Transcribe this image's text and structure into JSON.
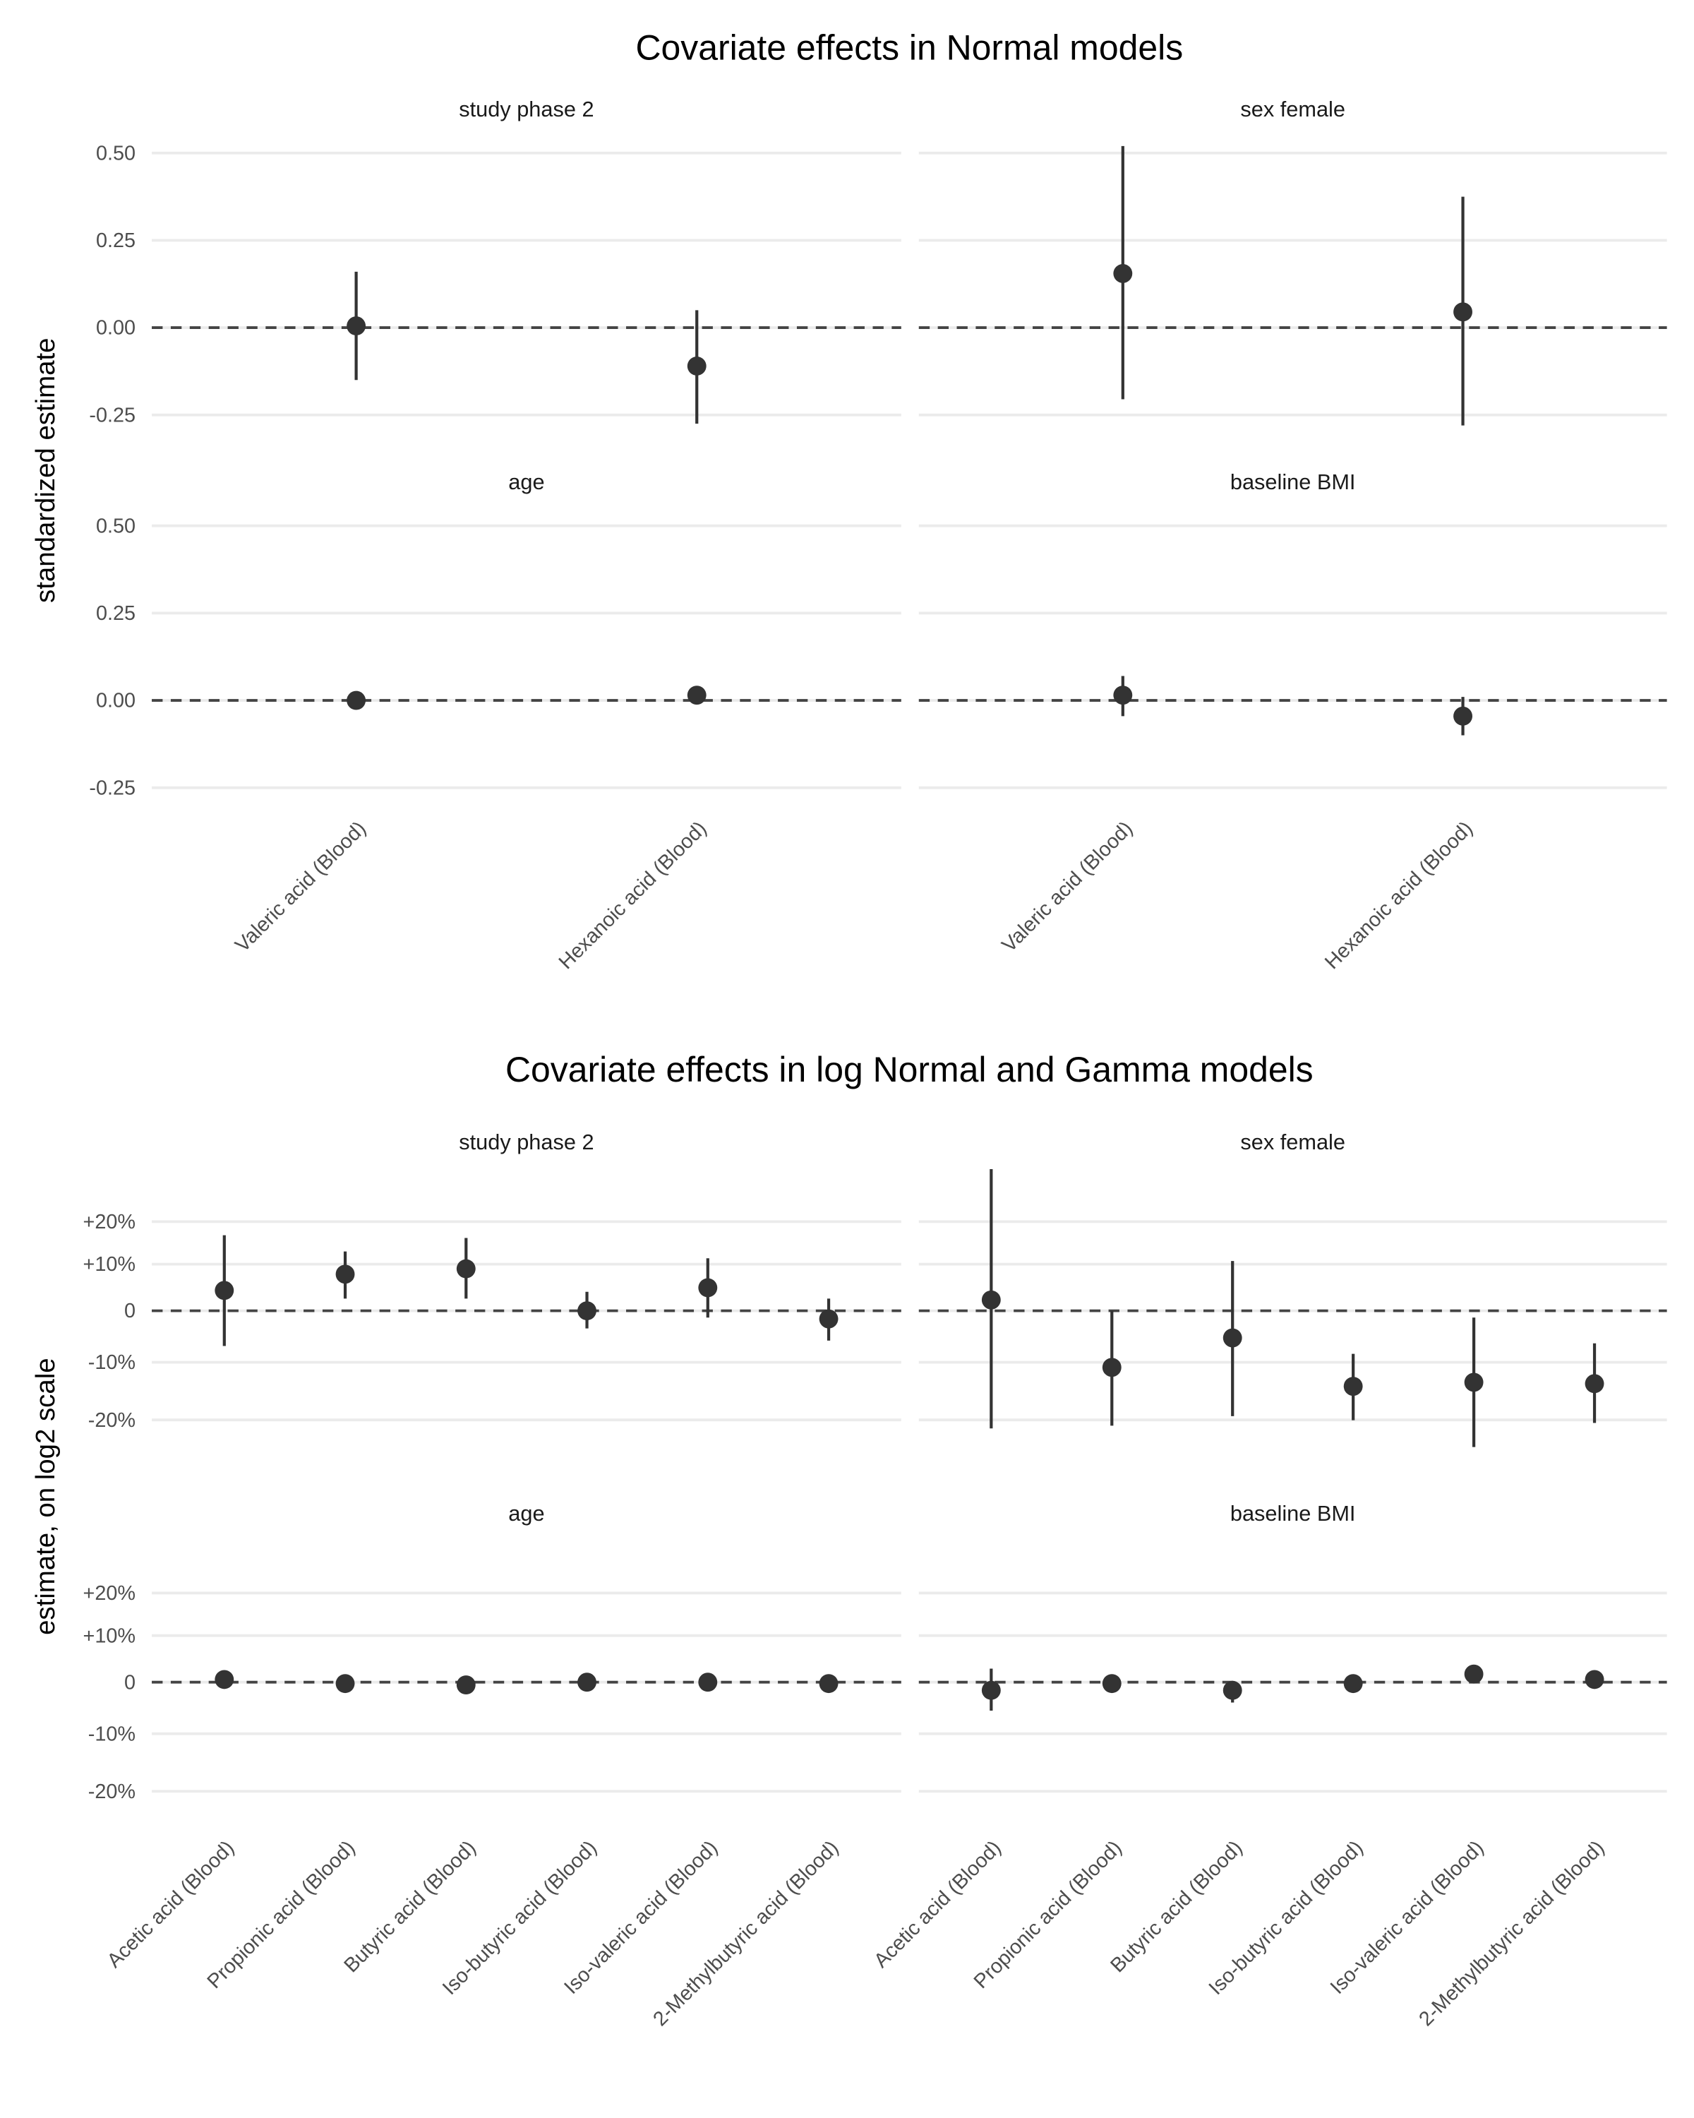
{
  "chart_data": [
    {
      "type": "pointrange",
      "title": "Covariate effects in Normal models",
      "y_label": "standardized estimate",
      "categories": [
        "Valeric acid (Blood)",
        "Hexanoic acid (Blood)"
      ],
      "ylim": [
        -0.3,
        0.55
      ],
      "yticks": [
        {
          "value": 0.5,
          "label": "0.50"
        },
        {
          "value": 0.25,
          "label": "0.25"
        },
        {
          "value": 0,
          "label": "0.00"
        },
        {
          "value": -0.25,
          "label": "-0.25"
        }
      ],
      "reference_line": 0,
      "grid": true,
      "color": "#333333",
      "facets": [
        {
          "title": "study phase 2",
          "values": [
            0.005,
            -0.11
          ],
          "lower": [
            -0.15,
            -0.275
          ],
          "upper": [
            0.16,
            0.05
          ]
        },
        {
          "title": "sex female",
          "values": [
            0.155,
            0.045
          ],
          "lower": [
            -0.205,
            -0.28
          ],
          "upper": [
            0.52,
            0.375
          ]
        },
        {
          "title": "age",
          "values": [
            0.0,
            0.015
          ],
          "lower": [
            -0.005,
            0.01
          ],
          "upper": [
            0.005,
            0.02
          ]
        },
        {
          "title": "baseline BMI",
          "values": [
            0.015,
            -0.045
          ],
          "lower": [
            -0.045,
            -0.1
          ],
          "upper": [
            0.07,
            0.01
          ]
        }
      ]
    },
    {
      "type": "pointrange",
      "title": "Covariate effects in log Normal and Gamma models",
      "y_label": "estimate, on log2 scale",
      "categories": [
        "Acetic acid (Blood)",
        "Propionic acid (Blood)",
        "Butyric acid (Blood)",
        "Iso-butyric acid (Blood)",
        "Iso-valeric acid (Blood)",
        "2-Methylbutyric acid (Blood)"
      ],
      "ylim": [
        -0.42,
        0.42
      ],
      "yticks": [
        {
          "value": 0.2630344,
          "label": "+20%"
        },
        {
          "value": 0.1375035,
          "label": "+10%"
        },
        0,
        {
          "value": -0.1520031,
          "label": "-10%"
        },
        {
          "value": -0.3219281,
          "label": "-20%"
        }
      ],
      "reference_line": 0,
      "grid": true,
      "color": "#333333",
      "facets": [
        {
          "title": "study phase 2",
          "values": [
            0.06,
            0.108,
            0.124,
            0.0,
            0.068,
            -0.024
          ],
          "lower": [
            -0.104,
            0.036,
            0.036,
            -0.052,
            -0.02,
            -0.088
          ],
          "upper": [
            0.223,
            0.175,
            0.215,
            0.056,
            0.155,
            0.036
          ]
        },
        {
          "title": "sex female",
          "values": [
            0.032,
            -0.167,
            -0.08,
            -0.223,
            -0.211,
            -0.215
          ],
          "lower": [
            -0.347,
            -0.339,
            -0.311,
            -0.323,
            -0.402,
            -0.331
          ],
          "upper": [
            0.418,
            0.0,
            0.147,
            -0.127,
            -0.02,
            -0.096
          ]
        },
        {
          "title": "age",
          "values": [
            0.008,
            -0.004,
            -0.008,
            0.0,
            0.0,
            -0.004
          ],
          "lower": [
            0.004,
            -0.008,
            -0.012,
            -0.004,
            -0.004,
            -0.008
          ],
          "upper": [
            0.012,
            0.0,
            -0.004,
            0.004,
            0.004,
            0.0
          ]
        },
        {
          "title": "baseline BMI",
          "values": [
            -0.024,
            -0.004,
            -0.024,
            -0.004,
            0.024,
            0.008
          ],
          "lower": [
            -0.084,
            -0.008,
            -0.06,
            -0.008,
            0.0,
            0.004
          ],
          "upper": [
            0.04,
            0.0,
            0.0,
            0.0,
            0.044,
            0.012
          ]
        }
      ]
    }
  ]
}
